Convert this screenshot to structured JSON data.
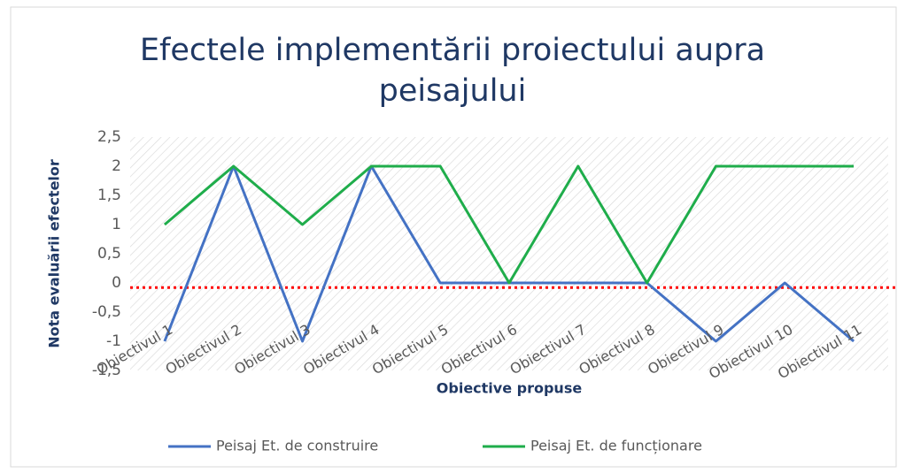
{
  "chart_data": {
    "type": "line",
    "title": [
      "Efectele implementării proiectului aupra",
      "peisajului"
    ],
    "y_label": "Nota evaluării efectelor",
    "x_label": "Obiective propuse",
    "categories": [
      "Obiectivul 1",
      "Obiectivul 2",
      "Obiectivul 3",
      "Obiectivul 4",
      "Obiectivul 5",
      "Obiectivul 6",
      "Obiectivul 7",
      "Obiectivul 8",
      "Obiectivul 9",
      "Obiectivul 10",
      "Obiectivul 11"
    ],
    "series": [
      {
        "name": "Peisaj Et. de construire",
        "color": "#4472c4",
        "values": [
          -1,
          2,
          -1,
          2,
          0,
          0,
          0,
          0,
          -1,
          0,
          -1
        ]
      },
      {
        "name": "Peisaj Et. de funcționare",
        "color": "#1fad4b",
        "values": [
          1,
          2,
          1,
          2,
          2,
          0,
          2,
          0,
          2,
          2,
          2
        ]
      }
    ],
    "reference_line": {
      "value": -0.08,
      "color": "#ff0000"
    },
    "ylim": [
      -1.5,
      2.5
    ],
    "yticks": [
      {
        "value": -1.5,
        "label": "-1,5"
      },
      -1,
      {
        "value": -0.5,
        "label": "-0,5"
      },
      0,
      {
        "value": 0.5,
        "label": "0,5"
      },
      1,
      {
        "value": 1.5,
        "label": "1,5"
      },
      2,
      {
        "value": 2.5,
        "label": "2,5"
      }
    ],
    "legend": "bottom"
  }
}
